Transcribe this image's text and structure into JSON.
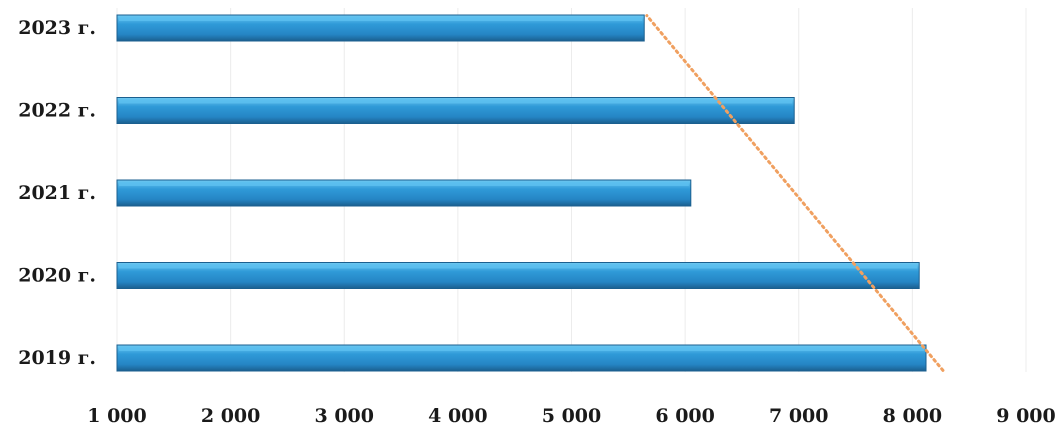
{
  "chart_data": {
    "type": "bar",
    "orientation": "horizontal",
    "categories": [
      "2019 г.",
      "2020 г.",
      "2021 г.",
      "2022 г.",
      "2023 г."
    ],
    "values": [
      8120,
      8060,
      6050,
      6960,
      5640
    ],
    "xlim": [
      1000,
      9000
    ],
    "x_ticks": [
      1000,
      2000,
      3000,
      4000,
      5000,
      6000,
      7000,
      8000,
      9000
    ],
    "x_tick_labels": [
      "1 000",
      "2 000",
      "3 000",
      "4 000",
      "5 000",
      "6 000",
      "7 000",
      "8 000",
      "9 000"
    ],
    "trendline": {
      "type": "linear",
      "style": "dotted",
      "color": "#f0a060"
    },
    "grid": true,
    "legend": "none",
    "bar_color": "#2a8fd0",
    "bar_highlight_color": "#5cc0f0",
    "bar_edge_color": "#1b5f8f"
  }
}
